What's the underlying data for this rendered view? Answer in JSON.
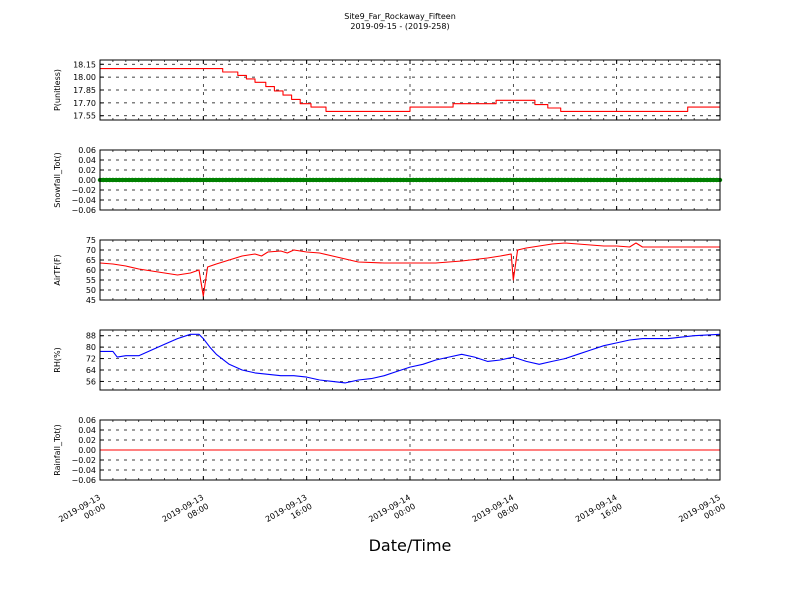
{
  "chart_data": {
    "type": "line",
    "title_line1": "Site9_Far_Rockaway_Fifteen",
    "title_line2": "2019-09-15 - (2019-258)",
    "xlabel": "Date/Time",
    "x_ticks": [
      [
        "2019-09-13",
        "00:00"
      ],
      [
        "2019-09-13",
        "08:00"
      ],
      [
        "2019-09-13",
        "16:00"
      ],
      [
        "2019-09-14",
        "00:00"
      ],
      [
        "2019-09-14",
        "08:00"
      ],
      [
        "2019-09-14",
        "16:00"
      ],
      [
        "2019-09-15",
        "00:00"
      ]
    ],
    "xlim": [
      "2019-09-13 00:00",
      "2019-09-15 00:00"
    ],
    "grid": true,
    "panels": [
      {
        "ylabel": "P(unitless)",
        "ylim": [
          17.5,
          18.2
        ],
        "yticks": [
          "18.15",
          "18.00",
          "17.85",
          "17.70",
          "17.55"
        ],
        "ytick_values": [
          18.15,
          18.0,
          17.85,
          17.7,
          17.55
        ],
        "color": "#ff0000",
        "style": "step",
        "series": [
          [
            "2019-09-13 00:00",
            18.1
          ],
          [
            "2019-09-13 09:30",
            18.1
          ],
          [
            "2019-09-13 09:30",
            18.06
          ],
          [
            "2019-09-13 10:40",
            18.06
          ],
          [
            "2019-09-13 10:40",
            18.02
          ],
          [
            "2019-09-13 11:20",
            18.02
          ],
          [
            "2019-09-13 11:20",
            17.98
          ],
          [
            "2019-09-13 12:00",
            17.98
          ],
          [
            "2019-09-13 12:00",
            17.94
          ],
          [
            "2019-09-13 12:50",
            17.94
          ],
          [
            "2019-09-13 12:50",
            17.89
          ],
          [
            "2019-09-13 13:30",
            17.89
          ],
          [
            "2019-09-13 13:30",
            17.84
          ],
          [
            "2019-09-13 14:10",
            17.84
          ],
          [
            "2019-09-13 14:10",
            17.79
          ],
          [
            "2019-09-13 14:50",
            17.79
          ],
          [
            "2019-09-13 14:50",
            17.74
          ],
          [
            "2019-09-13 15:30",
            17.74
          ],
          [
            "2019-09-13 15:30",
            17.69
          ],
          [
            "2019-09-13 16:20",
            17.69
          ],
          [
            "2019-09-13 16:20",
            17.65
          ],
          [
            "2019-09-13 17:30",
            17.65
          ],
          [
            "2019-09-13 17:30",
            17.6
          ],
          [
            "2019-09-14 00:00",
            17.6
          ],
          [
            "2019-09-14 00:00",
            17.65
          ],
          [
            "2019-09-14 03:20",
            17.65
          ],
          [
            "2019-09-14 03:20",
            17.69
          ],
          [
            "2019-09-14 06:40",
            17.69
          ],
          [
            "2019-09-14 06:40",
            17.73
          ],
          [
            "2019-09-14 09:40",
            17.73
          ],
          [
            "2019-09-14 09:40",
            17.68
          ],
          [
            "2019-09-14 10:40",
            17.68
          ],
          [
            "2019-09-14 10:40",
            17.64
          ],
          [
            "2019-09-14 11:40",
            17.64
          ],
          [
            "2019-09-14 11:40",
            17.6
          ],
          [
            "2019-09-14 21:30",
            17.6
          ],
          [
            "2019-09-14 21:30",
            17.65
          ],
          [
            "2019-09-15 00:00",
            17.65
          ]
        ]
      },
      {
        "ylabel": "Snowfall_Tot()",
        "ylim": [
          -0.06,
          0.06
        ],
        "yticks": [
          "0.06",
          "0.04",
          "0.02",
          "0.00",
          "−0.02",
          "−0.04",
          "−0.06"
        ],
        "ytick_values": [
          0.06,
          0.04,
          0.02,
          0.0,
          -0.02,
          -0.04,
          -0.06
        ],
        "color": "#008000",
        "style": "thick",
        "series": [
          [
            "2019-09-13 00:00",
            0.0
          ],
          [
            "2019-09-15 00:00",
            0.0
          ]
        ]
      },
      {
        "ylabel": "AirTF(F)",
        "ylim": [
          45,
          75
        ],
        "yticks": [
          "75",
          "70",
          "65",
          "60",
          "55",
          "50",
          "45"
        ],
        "ytick_values": [
          75,
          70,
          65,
          60,
          55,
          50,
          45
        ],
        "color": "#ff0000",
        "style": "line",
        "series": [
          [
            "2019-09-13 00:00",
            63.5
          ],
          [
            "2019-09-13 01:00",
            63
          ],
          [
            "2019-09-13 02:00",
            62
          ],
          [
            "2019-09-13 03:00",
            60.5
          ],
          [
            "2019-09-13 04:00",
            59.5
          ],
          [
            "2019-09-13 05:00",
            58.5
          ],
          [
            "2019-09-13 06:00",
            57.5
          ],
          [
            "2019-09-13 07:00",
            58.5
          ],
          [
            "2019-09-13 07:40",
            60
          ],
          [
            "2019-09-13 08:00",
            47
          ],
          [
            "2019-09-13 08:20",
            61.5
          ],
          [
            "2019-09-13 09:00",
            63
          ],
          [
            "2019-09-13 10:00",
            65
          ],
          [
            "2019-09-13 11:00",
            67
          ],
          [
            "2019-09-13 12:00",
            68
          ],
          [
            "2019-09-13 12:30",
            67
          ],
          [
            "2019-09-13 13:00",
            69
          ],
          [
            "2019-09-13 14:00",
            69.5
          ],
          [
            "2019-09-13 14:30",
            68.5
          ],
          [
            "2019-09-13 15:00",
            70
          ],
          [
            "2019-09-13 16:00",
            69
          ],
          [
            "2019-09-13 17:00",
            68.5
          ],
          [
            "2019-09-13 18:00",
            67
          ],
          [
            "2019-09-13 19:00",
            65.5
          ],
          [
            "2019-09-13 20:00",
            64
          ],
          [
            "2019-09-13 22:00",
            63.5
          ],
          [
            "2019-09-14 00:00",
            63.5
          ],
          [
            "2019-09-14 02:00",
            63.5
          ],
          [
            "2019-09-14 04:00",
            64.5
          ],
          [
            "2019-09-14 06:00",
            66
          ],
          [
            "2019-09-14 07:00",
            67
          ],
          [
            "2019-09-14 07:50",
            68
          ],
          [
            "2019-09-14 08:00",
            55
          ],
          [
            "2019-09-14 08:20",
            70
          ],
          [
            "2019-09-14 09:00",
            71
          ],
          [
            "2019-09-14 10:00",
            72
          ],
          [
            "2019-09-14 11:00",
            73
          ],
          [
            "2019-09-14 12:00",
            73.5
          ],
          [
            "2019-09-14 13:00",
            73
          ],
          [
            "2019-09-14 14:00",
            72.5
          ],
          [
            "2019-09-14 15:00",
            72
          ],
          [
            "2019-09-14 16:00",
            72
          ],
          [
            "2019-09-14 17:00",
            71.5
          ],
          [
            "2019-09-14 17:30",
            73.5
          ],
          [
            "2019-09-14 18:00",
            71.5
          ],
          [
            "2019-09-14 20:00",
            71.5
          ],
          [
            "2019-09-14 22:00",
            71.5
          ],
          [
            "2019-09-15 00:00",
            71.5
          ]
        ]
      },
      {
        "ylabel": "RH(%)",
        "ylim": [
          50,
          92
        ],
        "yticks": [
          "88",
          "80",
          "72",
          "64",
          "56"
        ],
        "ytick_values": [
          88,
          80,
          72,
          64,
          56
        ],
        "color": "#0000ff",
        "style": "line",
        "series": [
          [
            "2019-09-13 00:00",
            77
          ],
          [
            "2019-09-13 01:00",
            77
          ],
          [
            "2019-09-13 01:20",
            73
          ],
          [
            "2019-09-13 02:00",
            74
          ],
          [
            "2019-09-13 03:00",
            74
          ],
          [
            "2019-09-13 04:00",
            78
          ],
          [
            "2019-09-13 05:00",
            82
          ],
          [
            "2019-09-13 06:00",
            86
          ],
          [
            "2019-09-13 07:00",
            89
          ],
          [
            "2019-09-13 07:40",
            89
          ],
          [
            "2019-09-13 08:00",
            86
          ],
          [
            "2019-09-13 08:30",
            80
          ],
          [
            "2019-09-13 09:00",
            75
          ],
          [
            "2019-09-13 10:00",
            68
          ],
          [
            "2019-09-13 11:00",
            64
          ],
          [
            "2019-09-13 12:00",
            62
          ],
          [
            "2019-09-13 13:00",
            61
          ],
          [
            "2019-09-13 14:00",
            60
          ],
          [
            "2019-09-13 15:00",
            60
          ],
          [
            "2019-09-13 16:00",
            59
          ],
          [
            "2019-09-13 17:00",
            57
          ],
          [
            "2019-09-13 18:00",
            56
          ],
          [
            "2019-09-13 19:00",
            55
          ],
          [
            "2019-09-13 20:00",
            57
          ],
          [
            "2019-09-13 21:00",
            58
          ],
          [
            "2019-09-13 22:00",
            60
          ],
          [
            "2019-09-13 23:00",
            63
          ],
          [
            "2019-09-14 00:00",
            66
          ],
          [
            "2019-09-14 01:00",
            68
          ],
          [
            "2019-09-14 02:00",
            71
          ],
          [
            "2019-09-14 03:00",
            73
          ],
          [
            "2019-09-14 04:00",
            75
          ],
          [
            "2019-09-14 05:00",
            73
          ],
          [
            "2019-09-14 06:00",
            70
          ],
          [
            "2019-09-14 07:00",
            71
          ],
          [
            "2019-09-14 08:00",
            73
          ],
          [
            "2019-09-14 09:00",
            70
          ],
          [
            "2019-09-14 10:00",
            68
          ],
          [
            "2019-09-14 11:00",
            70
          ],
          [
            "2019-09-14 12:00",
            72
          ],
          [
            "2019-09-14 13:00",
            75
          ],
          [
            "2019-09-14 14:00",
            78
          ],
          [
            "2019-09-14 15:00",
            81
          ],
          [
            "2019-09-14 16:00",
            83
          ],
          [
            "2019-09-14 17:00",
            85
          ],
          [
            "2019-09-14 18:00",
            86
          ],
          [
            "2019-09-14 20:00",
            86
          ],
          [
            "2019-09-14 22:00",
            88
          ],
          [
            "2019-09-15 00:00",
            89
          ]
        ]
      },
      {
        "ylabel": "Rainfall_Tot()",
        "ylim": [
          -0.06,
          0.06
        ],
        "yticks": [
          "0.06",
          "0.04",
          "0.02",
          "0.00",
          "−0.02",
          "−0.04",
          "−0.06"
        ],
        "ytick_values": [
          0.06,
          0.04,
          0.02,
          0.0,
          -0.02,
          -0.04,
          -0.06
        ],
        "color": "#ff0000",
        "style": "line",
        "series": [
          [
            "2019-09-13 00:00",
            0.0
          ],
          [
            "2019-09-15 00:00",
            0.0
          ]
        ]
      }
    ]
  }
}
